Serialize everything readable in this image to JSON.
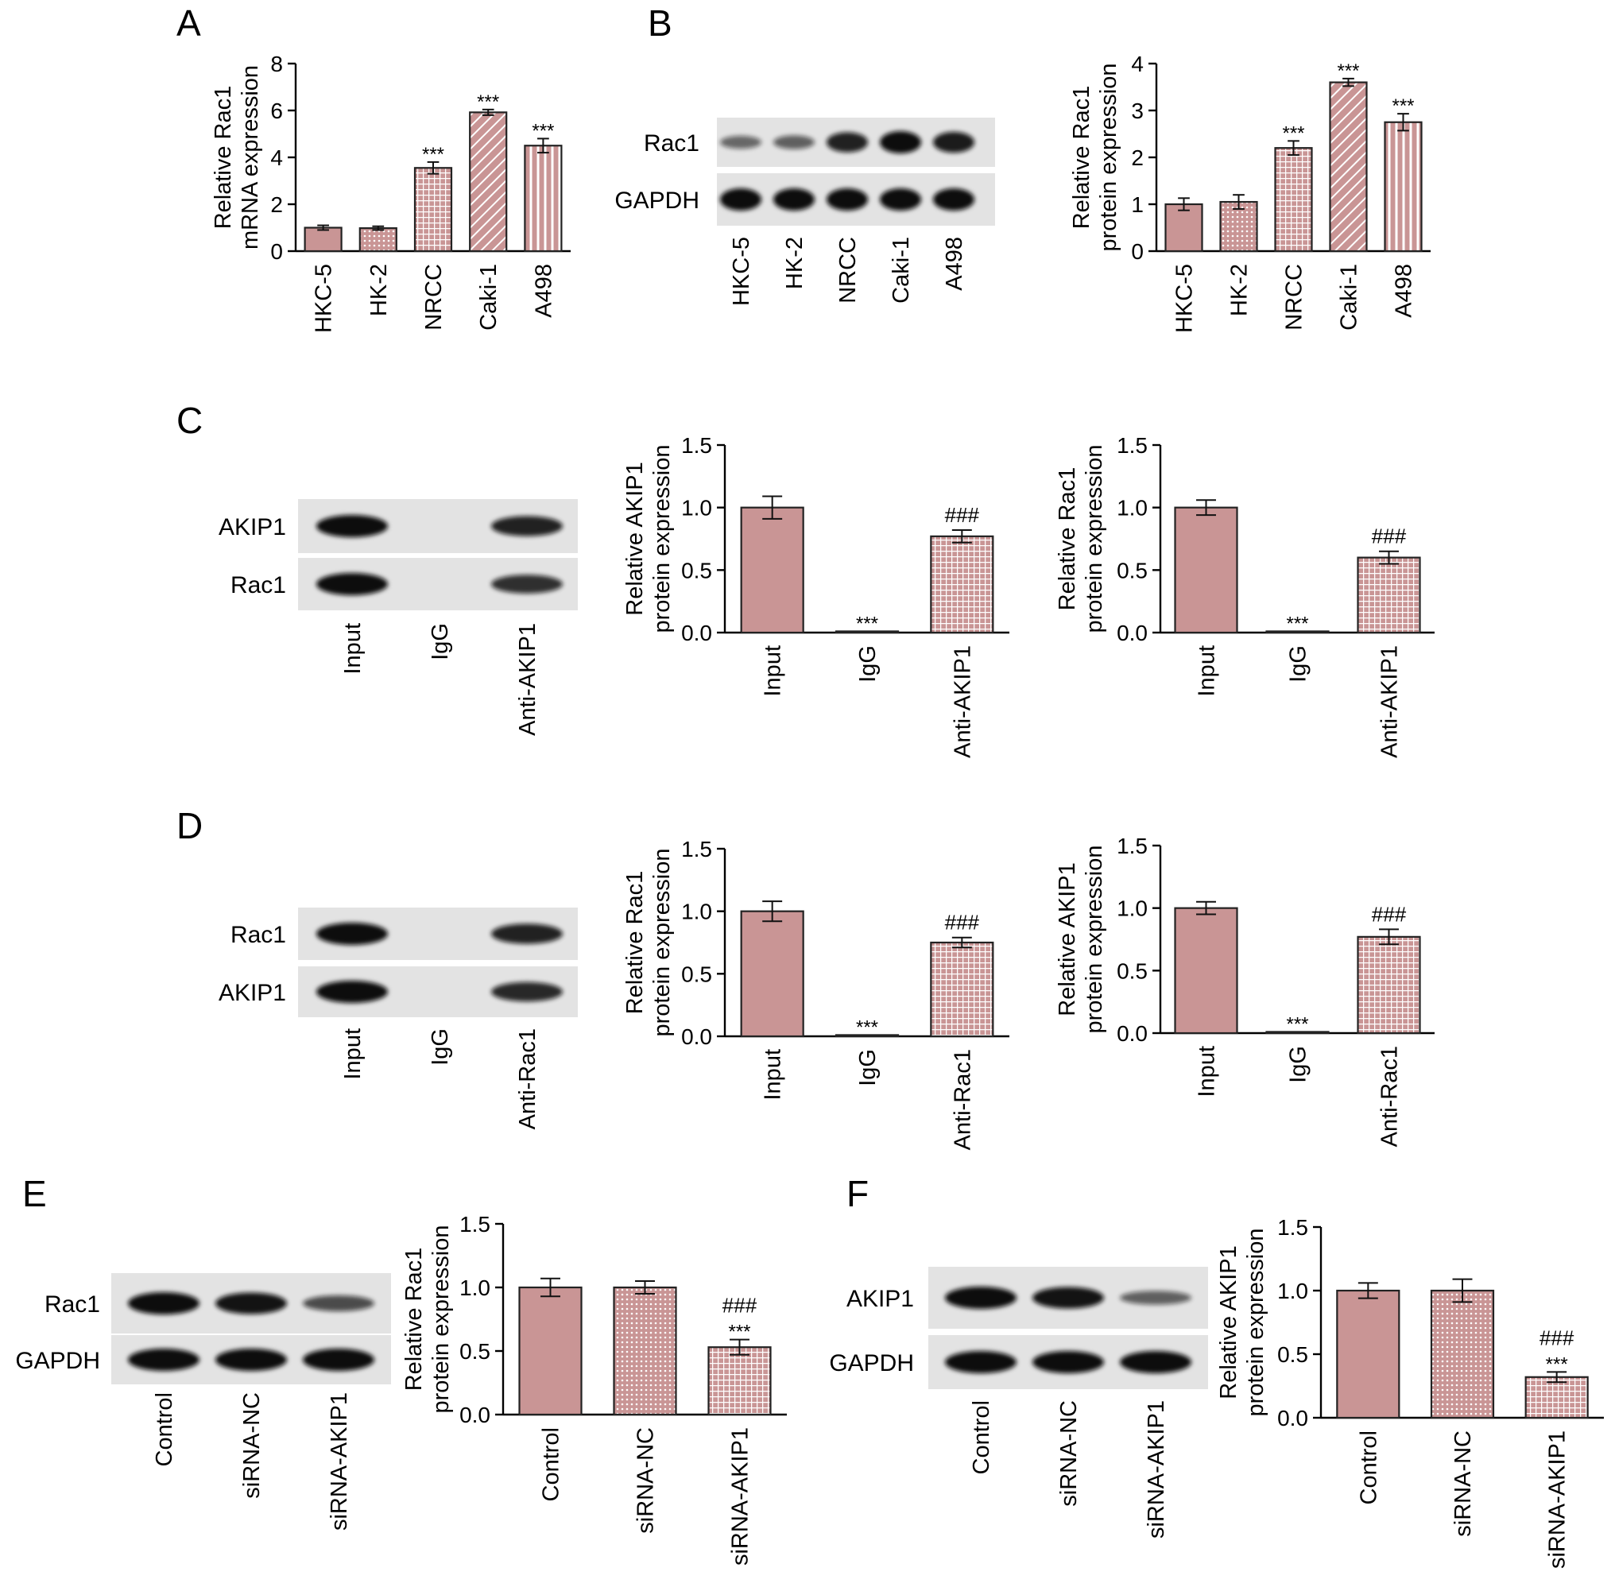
{
  "colors": {
    "bar_fill": "#c99595",
    "bar_fill_light": "#e9c8c8",
    "bar_stroke": "#222222",
    "pattern_line": "#ffffff",
    "blot_bg": "#e3e3e3",
    "band": "#101010"
  },
  "panel_letters": [
    "A",
    "B",
    "C",
    "D",
    "E",
    "F"
  ],
  "blots": [
    {
      "panel": "B",
      "rows": [
        "Rac1",
        "GAPDH"
      ],
      "lanes": [
        "HKC-5",
        "HK-2",
        "NRCC",
        "Caki-1",
        "A498"
      ]
    },
    {
      "panel": "C",
      "rows": [
        "AKIP1",
        "Rac1"
      ],
      "lanes": [
        "Input",
        "IgG",
        "Anti-AKIP1"
      ]
    },
    {
      "panel": "D",
      "rows": [
        "Rac1",
        "AKIP1"
      ],
      "lanes": [
        "Input",
        "IgG",
        "Anti-Rac1"
      ]
    },
    {
      "panel": "E",
      "rows": [
        "Rac1",
        "GAPDH"
      ],
      "lanes": [
        "Control",
        "siRNA-NC",
        "siRNA-AKIP1"
      ]
    },
    {
      "panel": "F",
      "rows": [
        "AKIP1",
        "GAPDH"
      ],
      "lanes": [
        "Control",
        "siRNA-NC",
        "siRNA-AKIP1"
      ]
    }
  ],
  "chart_data": [
    {
      "panel": "A",
      "type": "bar",
      "ylabel": [
        "Relative Rac1",
        "mRNA expression"
      ],
      "categories": [
        "HKC-5",
        "HK-2",
        "NRCC",
        "Caki-1",
        "A498"
      ],
      "values": [
        1.0,
        0.98,
        3.55,
        5.92,
        4.5
      ],
      "errors": [
        0.1,
        0.08,
        0.25,
        0.12,
        0.3
      ],
      "annotations": [
        "",
        "",
        "***",
        "***",
        "***"
      ],
      "ylim": [
        0,
        8
      ],
      "yticks": [
        "0",
        "2",
        "4",
        "6",
        "8"
      ],
      "patterns": [
        "solid",
        "dots",
        "grid",
        "diag",
        "vlines"
      ]
    },
    {
      "panel": "B",
      "type": "bar",
      "ylabel": [
        "Relative Rac1",
        "protein expression"
      ],
      "categories": [
        "HKC-5",
        "HK-2",
        "NRCC",
        "Caki-1",
        "A498"
      ],
      "values": [
        1.0,
        1.05,
        2.2,
        3.6,
        2.75
      ],
      "errors": [
        0.13,
        0.15,
        0.15,
        0.08,
        0.18
      ],
      "annotations": [
        "",
        "",
        "***",
        "***",
        "***"
      ],
      "ylim": [
        0,
        4
      ],
      "yticks": [
        "0",
        "1",
        "2",
        "3",
        "4"
      ],
      "patterns": [
        "solid",
        "dots",
        "grid",
        "diag",
        "vlines"
      ]
    },
    {
      "panel": "C",
      "type": "bar",
      "ylabel": [
        "Relative AKIP1",
        "protein expression"
      ],
      "categories": [
        "Input",
        "IgG",
        "Anti-AKIP1"
      ],
      "values": [
        1.0,
        0.01,
        0.77
      ],
      "errors": [
        0.09,
        0.0,
        0.05
      ],
      "annotations": [
        "",
        "***",
        "###"
      ],
      "ylim": [
        0,
        1.5
      ],
      "yticks": [
        "0.0",
        "0.5",
        "1.0",
        "1.5"
      ],
      "patterns": [
        "solid",
        "solid",
        "grid"
      ]
    },
    {
      "panel": "C",
      "type": "bar",
      "ylabel": [
        "Relative Rac1",
        "protein expression"
      ],
      "categories": [
        "Input",
        "IgG",
        "Anti-AKIP1"
      ],
      "values": [
        1.0,
        0.01,
        0.6
      ],
      "errors": [
        0.06,
        0.0,
        0.05
      ],
      "annotations": [
        "",
        "***",
        "###"
      ],
      "ylim": [
        0,
        1.5
      ],
      "yticks": [
        "0.0",
        "0.5",
        "1.0",
        "1.5"
      ],
      "patterns": [
        "solid",
        "solid",
        "grid"
      ]
    },
    {
      "panel": "D",
      "type": "bar",
      "ylabel": [
        "Relative Rac1",
        "protein expression"
      ],
      "categories": [
        "Input",
        "IgG",
        "Anti-Rac1"
      ],
      "values": [
        1.0,
        0.01,
        0.75
      ],
      "errors": [
        0.08,
        0.0,
        0.04
      ],
      "annotations": [
        "",
        "***",
        "###"
      ],
      "ylim": [
        0,
        1.5
      ],
      "yticks": [
        "0.0",
        "0.5",
        "1.0",
        "1.5"
      ],
      "patterns": [
        "solid",
        "solid",
        "grid"
      ]
    },
    {
      "panel": "D",
      "type": "bar",
      "ylabel": [
        "Relative AKIP1",
        "protein expression"
      ],
      "categories": [
        "Input",
        "IgG",
        "Anti-Rac1"
      ],
      "values": [
        1.0,
        0.01,
        0.77
      ],
      "errors": [
        0.05,
        0.0,
        0.06
      ],
      "annotations": [
        "",
        "***",
        "###"
      ],
      "ylim": [
        0,
        1.5
      ],
      "yticks": [
        "0.0",
        "0.5",
        "1.0",
        "1.5"
      ],
      "patterns": [
        "solid",
        "solid",
        "grid"
      ]
    },
    {
      "panel": "E",
      "type": "bar",
      "ylabel": [
        "Relative Rac1",
        "protein expression"
      ],
      "categories": [
        "Control",
        "siRNA-NC",
        "siRNA-AKIP1"
      ],
      "values": [
        1.0,
        1.0,
        0.53
      ],
      "errors": [
        0.07,
        0.05,
        0.06
      ],
      "annotations": [
        "",
        "",
        "###\n***"
      ],
      "ylim": [
        0,
        1.5
      ],
      "yticks": [
        "0.0",
        "0.5",
        "1.0",
        "1.5"
      ],
      "patterns": [
        "solid",
        "dots",
        "grid"
      ]
    },
    {
      "panel": "F",
      "type": "bar",
      "ylabel": [
        "Relative AKIP1",
        "protein expression"
      ],
      "categories": [
        "Control",
        "siRNA-NC",
        "siRNA-AKIP1"
      ],
      "values": [
        1.0,
        1.0,
        0.32
      ],
      "errors": [
        0.06,
        0.09,
        0.04
      ],
      "annotations": [
        "",
        "",
        "###\n***"
      ],
      "ylim": [
        0,
        1.5
      ],
      "yticks": [
        "0.0",
        "0.5",
        "1.0",
        "1.5"
      ],
      "patterns": [
        "solid",
        "dots",
        "grid"
      ]
    }
  ]
}
